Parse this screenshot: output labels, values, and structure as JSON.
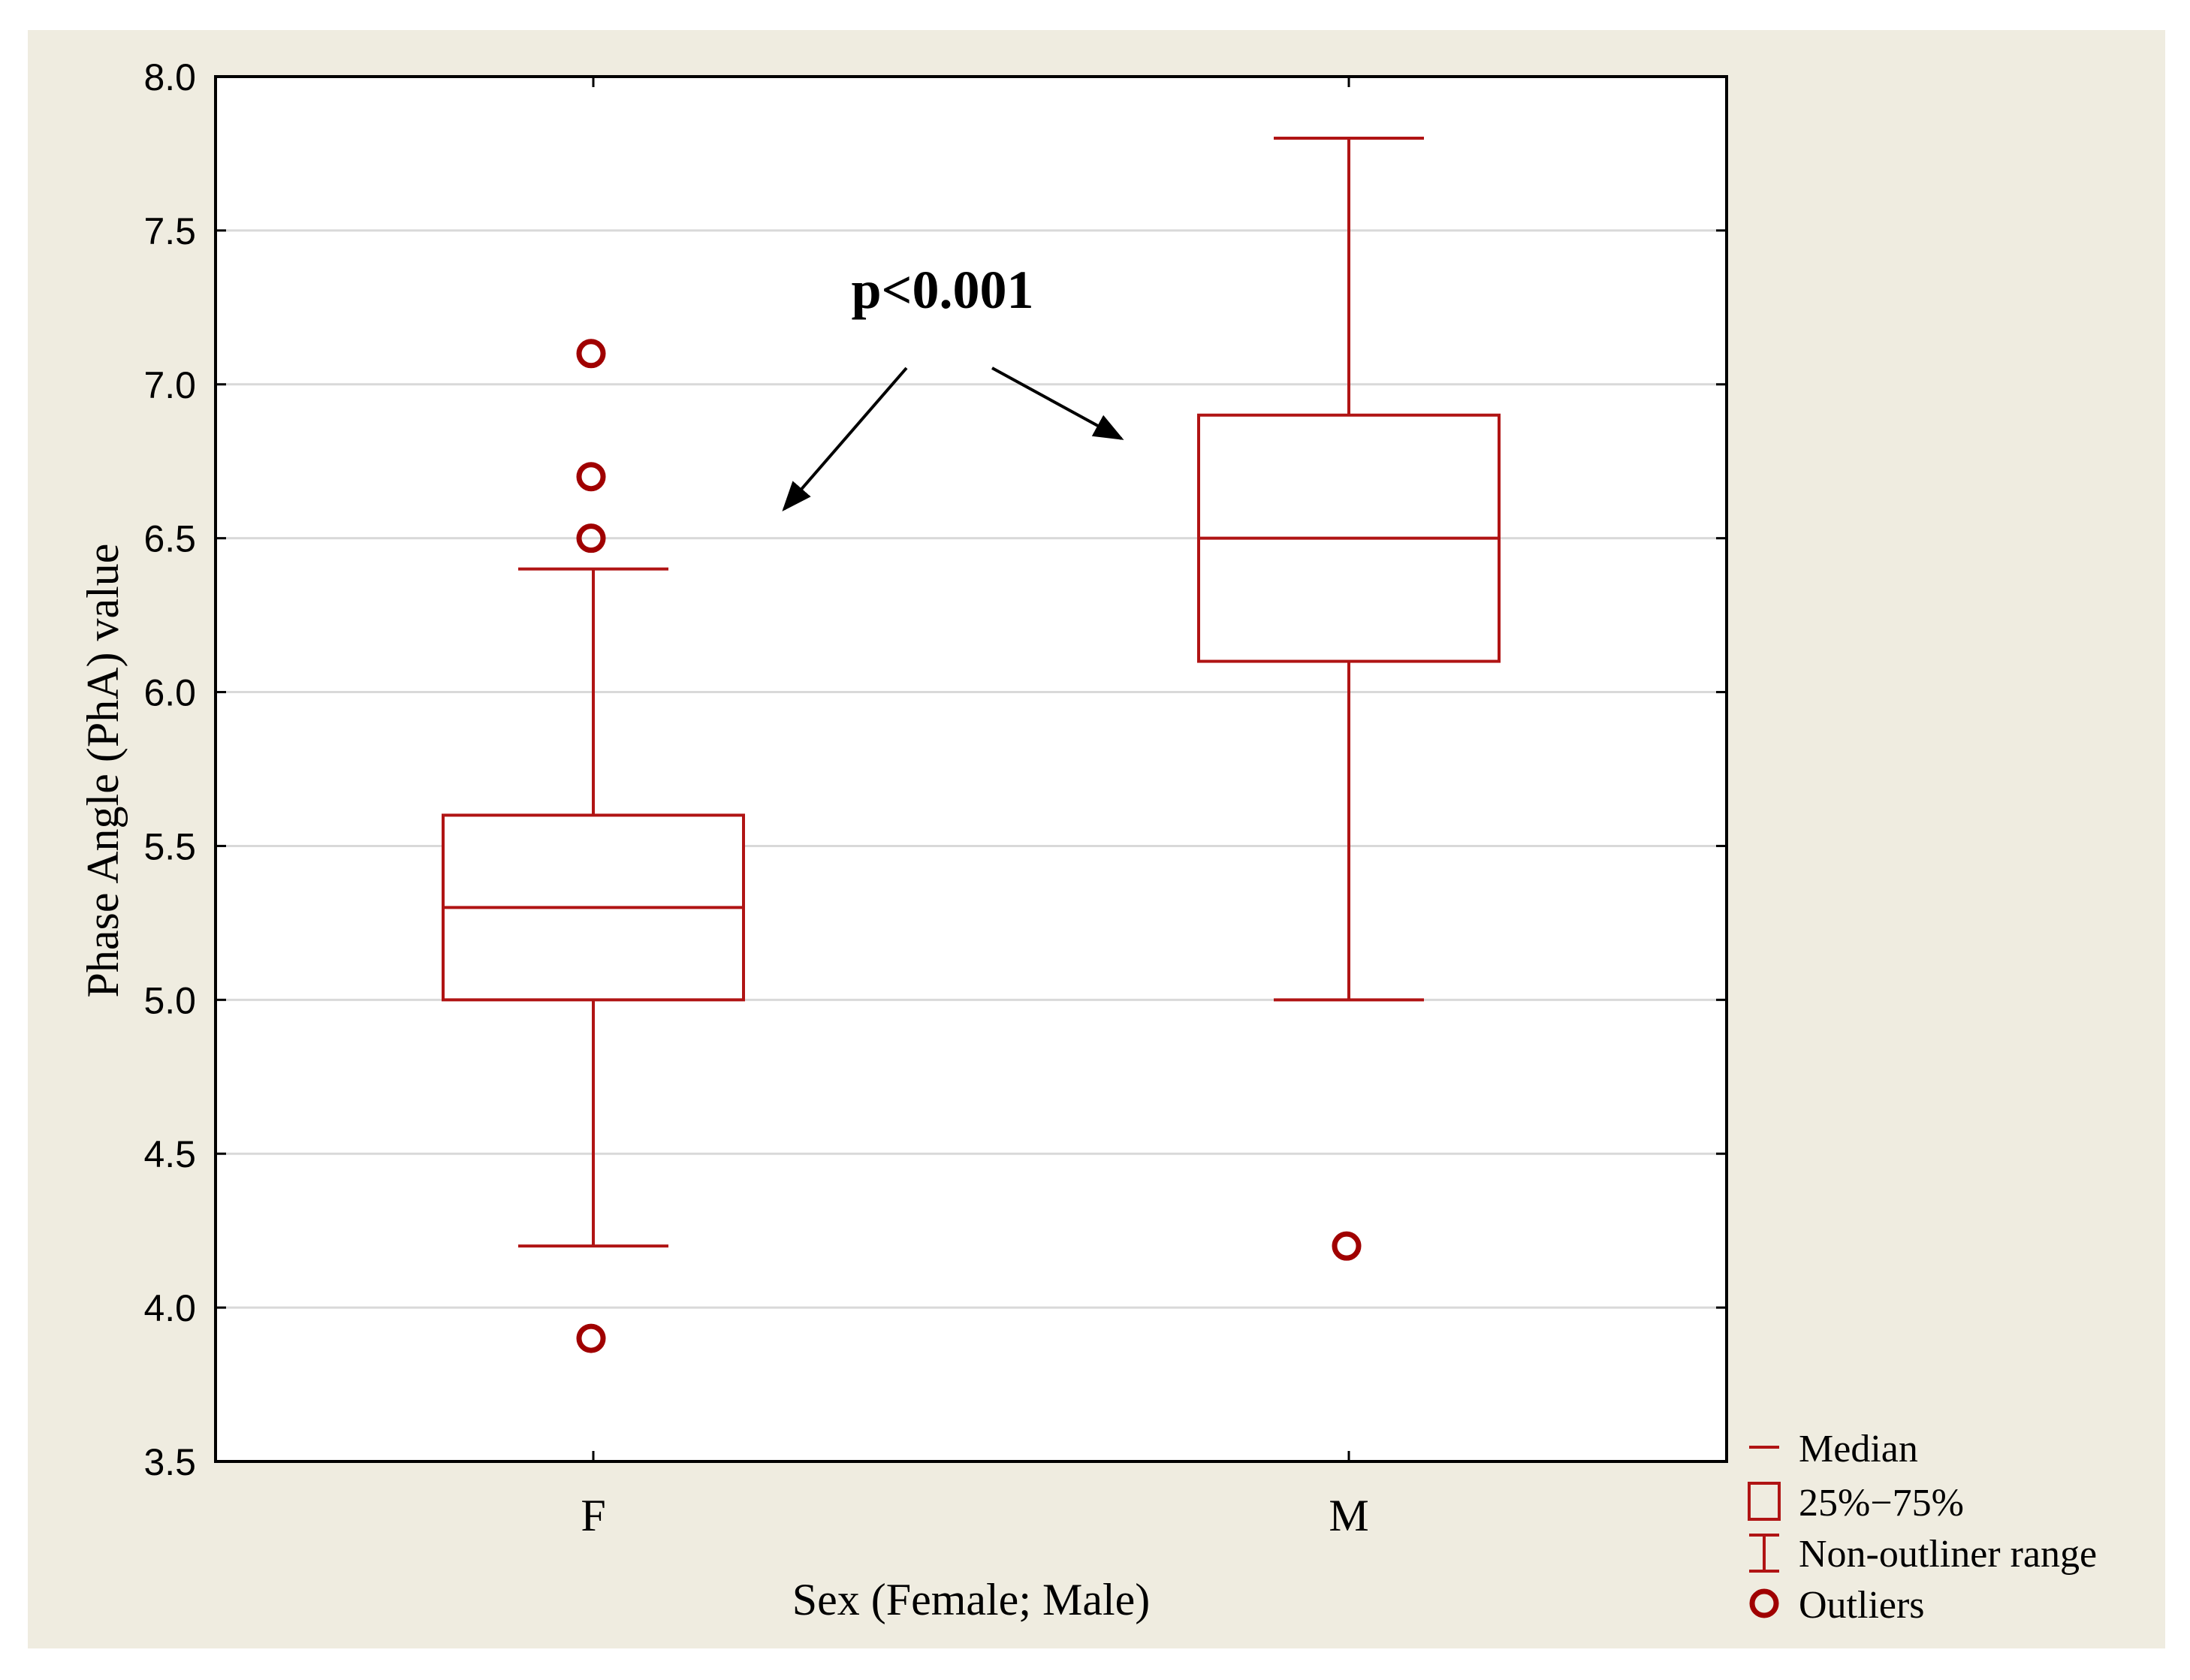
{
  "colors": {
    "background": "#efece0",
    "plot_background": "#ffffff",
    "box": "#b01414",
    "outlier": "#a00000",
    "grid": "#d9d9d9",
    "axis": "#000000"
  },
  "chart_data": {
    "type": "box",
    "title": "",
    "xlabel": "Sex (Female; Male)",
    "ylabel": "Phase Angle (PhA) value",
    "ylim": [
      3.5,
      8.0
    ],
    "yticks": [
      3.5,
      4.0,
      4.5,
      5.0,
      5.5,
      6.0,
      6.5,
      7.0,
      7.5,
      8.0
    ],
    "ytick_labels": [
      "3.5",
      "4.0",
      "4.5",
      "5.0",
      "5.5",
      "6.0",
      "6.5",
      "7.0",
      "7.5",
      "8.0"
    ],
    "grid": true,
    "categories": [
      "F",
      "M"
    ],
    "boxes": [
      {
        "category": "F",
        "whisker_low": 4.2,
        "q1": 5.0,
        "median": 5.3,
        "q3": 5.6,
        "whisker_high": 6.4,
        "outliers": [
          7.1,
          6.7,
          6.5,
          3.9
        ]
      },
      {
        "category": "M",
        "whisker_low": 5.0,
        "q1": 6.1,
        "median": 6.5,
        "q3": 6.9,
        "whisker_high": 7.8,
        "outliers": [
          4.2
        ]
      }
    ],
    "annotation": {
      "text": "p<0.001"
    },
    "legend": {
      "position": "bottom-right, outside plot",
      "entries": [
        {
          "symbol": "median",
          "label": "Median"
        },
        {
          "symbol": "box",
          "label": "25%−75%"
        },
        {
          "symbol": "whisker",
          "label": "Non-outliner range"
        },
        {
          "symbol": "outlier",
          "label": "Outliers"
        }
      ]
    }
  }
}
